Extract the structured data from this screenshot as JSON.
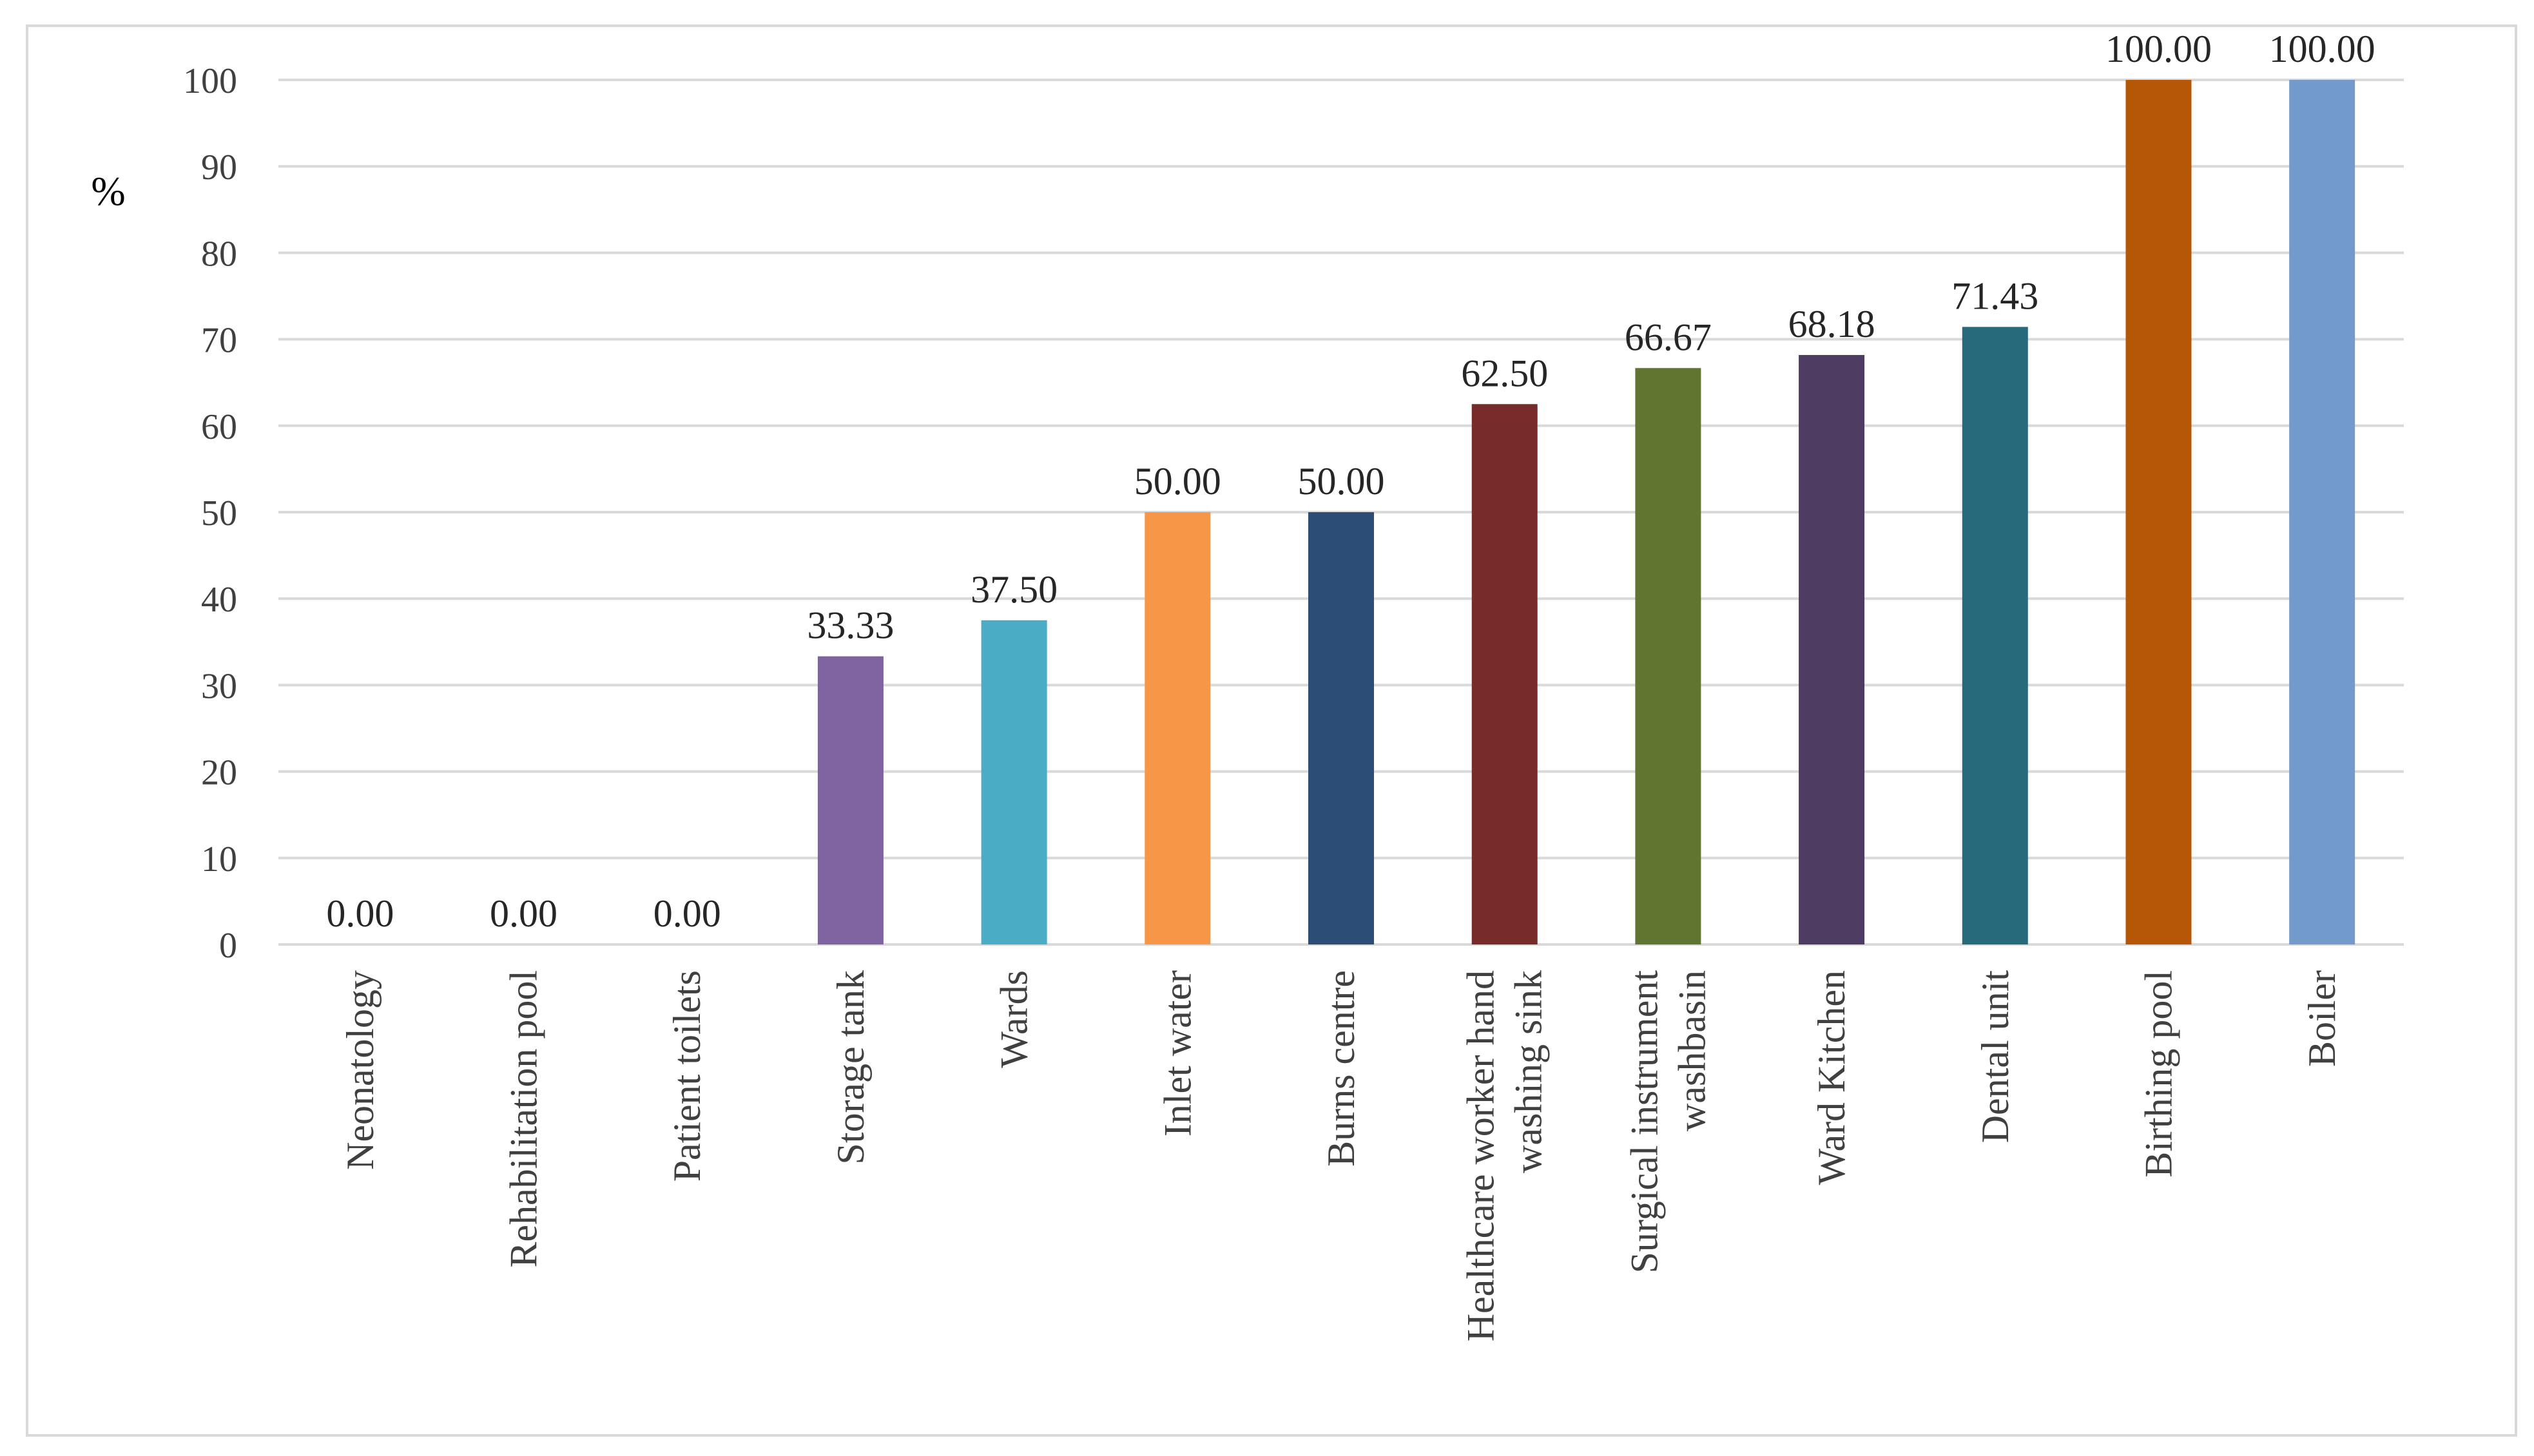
{
  "chart_data": {
    "type": "bar",
    "title": "",
    "xlabel": "",
    "ylabel": "%",
    "ylim": [
      0,
      100
    ],
    "yticks": [
      0,
      10,
      20,
      30,
      40,
      50,
      60,
      70,
      80,
      90,
      100
    ],
    "grid": true,
    "legend": "none",
    "categories": [
      [
        "Neonatology"
      ],
      [
        "Rehabilitation pool"
      ],
      [
        "Patient toilets"
      ],
      [
        "Storage tank"
      ],
      [
        "Wards"
      ],
      [
        "Inlet water"
      ],
      [
        "Burns centre"
      ],
      [
        "Healthcare worker hand",
        "washing sink"
      ],
      [
        "Surgical instrument",
        "washbasin"
      ],
      [
        "Ward Kitchen"
      ],
      [
        "Dental unit"
      ],
      [
        "Birthing pool"
      ],
      [
        "Boiler"
      ]
    ],
    "values": [
      0.0,
      0.0,
      0.0,
      33.33,
      37.5,
      50.0,
      50.0,
      62.5,
      66.67,
      68.18,
      71.43,
      100.0,
      100.0
    ],
    "value_labels": [
      "0.00",
      "0.00",
      "0.00",
      "33.33",
      "37.50",
      "50.00",
      "50.00",
      "62.50",
      "66.67",
      "68.18",
      "71.43",
      "100.00",
      "100.00"
    ],
    "colors": [
      "#7f63a1",
      "#7f63a1",
      "#7f63a1",
      "#7f63a1",
      "#4bacc6",
      "#f79646",
      "#2c4d75",
      "#772c2a",
      "#5f7530",
      "#4d3b62",
      "#276a7c",
      "#b65708",
      "#729aca"
    ],
    "gridline_color": "#d9d9d9",
    "axis_color": "#d9d9d9"
  }
}
